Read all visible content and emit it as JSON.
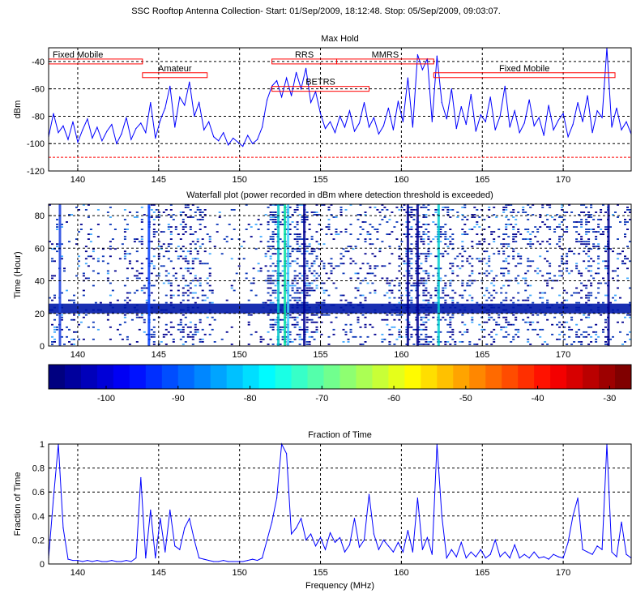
{
  "suptitle": "SSC Rooftop Antenna Collection- Start: 01/Sep/2009, 18:12:48. Stop:  05/Sep/2009, 09:03:07.",
  "chart_data": [
    {
      "type": "line",
      "title": "Max Hold",
      "xlabel": "",
      "ylabel": "dBm",
      "xlim": [
        138.2,
        174.2
      ],
      "ylim": [
        -120,
        -30
      ],
      "xticks": [
        140,
        145,
        150,
        155,
        160,
        165,
        170
      ],
      "yticks": [
        -120,
        -100,
        -80,
        -60,
        -40
      ],
      "grid": "dashed",
      "threshold_line": -110,
      "bands": [
        {
          "label": "Fixed Mobile",
          "x0": 138.2,
          "x1": 144.0,
          "y": -40
        },
        {
          "label": "Amateur",
          "x0": 144.0,
          "x1": 148.0,
          "y": -50
        },
        {
          "label": "RRS",
          "x0": 152.0,
          "x1": 156.0,
          "y": -40
        },
        {
          "label": "MMRS",
          "x0": 156.0,
          "x1": 162.0,
          "y": -40
        },
        {
          "label": "BETRS",
          "x0": 152.0,
          "x1": 158.0,
          "y": -60
        },
        {
          "label": "Fixed Mobile",
          "x0": 162.0,
          "x1": 173.2,
          "y": -50
        }
      ],
      "x": [
        138.2,
        138.5,
        138.8,
        139.1,
        139.4,
        139.7,
        140.0,
        140.3,
        140.6,
        140.9,
        141.2,
        141.5,
        141.8,
        142.1,
        142.4,
        142.7,
        143.0,
        143.3,
        143.6,
        143.9,
        144.2,
        144.5,
        144.8,
        145.1,
        145.4,
        145.7,
        146.0,
        146.3,
        146.6,
        146.9,
        147.2,
        147.5,
        147.8,
        148.1,
        148.4,
        148.7,
        149.0,
        149.3,
        149.6,
        149.9,
        150.2,
        150.5,
        150.8,
        151.1,
        151.4,
        151.7,
        152.0,
        152.3,
        152.6,
        152.9,
        153.2,
        153.5,
        153.8,
        154.1,
        154.4,
        154.7,
        155.0,
        155.3,
        155.6,
        155.9,
        156.2,
        156.5,
        156.8,
        157.1,
        157.4,
        157.7,
        158.0,
        158.3,
        158.6,
        158.9,
        159.2,
        159.5,
        159.8,
        160.1,
        160.4,
        160.7,
        161.0,
        161.3,
        161.6,
        161.9,
        162.2,
        162.5,
        162.8,
        163.1,
        163.4,
        163.7,
        164.0,
        164.3,
        164.6,
        164.9,
        165.2,
        165.5,
        165.8,
        166.1,
        166.4,
        166.7,
        167.0,
        167.3,
        167.6,
        167.9,
        168.2,
        168.5,
        168.8,
        169.1,
        169.4,
        169.7,
        170.0,
        170.3,
        170.6,
        170.9,
        171.2,
        171.5,
        171.8,
        172.1,
        172.4,
        172.7,
        173.0,
        173.3,
        173.6,
        173.9,
        174.2
      ],
      "series": [
        {
          "values": [
            -95,
            -78,
            -92,
            -87,
            -97,
            -84,
            -99,
            -90,
            -82,
            -96,
            -88,
            -98,
            -91,
            -86,
            -100,
            -93,
            -81,
            -97,
            -89,
            -85,
            -92,
            -70,
            -96,
            -83,
            -74,
            -58,
            -88,
            -66,
            -72,
            -55,
            -80,
            -70,
            -90,
            -84,
            -95,
            -98,
            -92,
            -101,
            -96,
            -99,
            -102,
            -94,
            -100,
            -97,
            -88,
            -68,
            -58,
            -54,
            -66,
            -52,
            -65,
            -48,
            -60,
            -45,
            -70,
            -62,
            -78,
            -89,
            -84,
            -92,
            -80,
            -88,
            -76,
            -91,
            -85,
            -70,
            -88,
            -81,
            -93,
            -87,
            -74,
            -90,
            -69,
            -84,
            -52,
            -88,
            -35,
            -46,
            -38,
            -84,
            -36,
            -70,
            -82,
            -60,
            -89,
            -73,
            -86,
            -64,
            -91,
            -79,
            -84,
            -66,
            -90,
            -80,
            -58,
            -88,
            -76,
            -92,
            -85,
            -68,
            -87,
            -81,
            -94,
            -72,
            -90,
            -83,
            -78,
            -95,
            -86,
            -70,
            -84,
            -65,
            -92,
            -76,
            -81,
            -30,
            -88,
            -74,
            -90,
            -84,
            -93
          ]
        }
      ]
    },
    {
      "type": "heatmap",
      "title": "Waterfall plot (power recorded in dBm where detection threshold is exceeded)",
      "xlabel": "",
      "ylabel": "Time (Hour)",
      "xlim": [
        138.2,
        174.2
      ],
      "ylim": [
        0,
        87
      ],
      "xticks": [
        140,
        145,
        150,
        155,
        160,
        165,
        170
      ],
      "yticks": [
        0,
        20,
        40,
        60,
        80
      ],
      "grid": "dashed"
    },
    {
      "type": "colorbar",
      "range": [
        -108,
        -27
      ],
      "ticks": [
        -100,
        -90,
        -80,
        -70,
        -60,
        -50,
        -40,
        -30
      ]
    },
    {
      "type": "line",
      "title": "Fraction of Time",
      "xlabel": "Frequency (MHz)",
      "ylabel": "Fraction of Time",
      "xlim": [
        138.2,
        174.2
      ],
      "ylim": [
        0,
        1
      ],
      "xticks": [
        140,
        145,
        150,
        155,
        160,
        165,
        170
      ],
      "yticks": [
        0,
        0.2,
        0.4,
        0.6,
        0.8,
        1
      ],
      "grid": "dashed",
      "x": [
        138.2,
        138.5,
        138.8,
        139.1,
        139.4,
        139.7,
        140.0,
        140.3,
        140.6,
        140.9,
        141.2,
        141.5,
        141.8,
        142.1,
        142.4,
        142.7,
        143.0,
        143.3,
        143.6,
        143.9,
        144.2,
        144.5,
        144.8,
        145.1,
        145.4,
        145.7,
        146.0,
        146.3,
        146.6,
        146.9,
        147.2,
        147.5,
        147.8,
        148.1,
        148.4,
        148.7,
        149.0,
        149.3,
        149.6,
        149.9,
        150.2,
        150.5,
        150.8,
        151.1,
        151.4,
        151.7,
        152.0,
        152.3,
        152.6,
        152.9,
        153.2,
        153.5,
        153.8,
        154.1,
        154.4,
        154.7,
        155.0,
        155.3,
        155.6,
        155.9,
        156.2,
        156.5,
        156.8,
        157.1,
        157.4,
        157.7,
        158.0,
        158.3,
        158.6,
        158.9,
        159.2,
        159.5,
        159.8,
        160.1,
        160.4,
        160.7,
        161.0,
        161.3,
        161.6,
        161.9,
        162.2,
        162.5,
        162.8,
        163.1,
        163.4,
        163.7,
        164.0,
        164.3,
        164.6,
        164.9,
        165.2,
        165.5,
        165.8,
        166.1,
        166.4,
        166.7,
        167.0,
        167.3,
        167.6,
        167.9,
        168.2,
        168.5,
        168.8,
        169.1,
        169.4,
        169.7,
        170.0,
        170.3,
        170.6,
        170.9,
        171.2,
        171.5,
        171.8,
        172.1,
        172.4,
        172.7,
        173.0,
        173.3,
        173.6,
        173.9,
        174.2
      ],
      "series": [
        {
          "values": [
            0.05,
            0.55,
            1.0,
            0.3,
            0.04,
            0.03,
            0.03,
            0.02,
            0.03,
            0.02,
            0.03,
            0.02,
            0.02,
            0.03,
            0.02,
            0.02,
            0.03,
            0.02,
            0.05,
            0.72,
            0.05,
            0.45,
            0.05,
            0.38,
            0.1,
            0.45,
            0.15,
            0.12,
            0.3,
            0.38,
            0.2,
            0.05,
            0.04,
            0.03,
            0.02,
            0.02,
            0.03,
            0.02,
            0.02,
            0.02,
            0.02,
            0.03,
            0.04,
            0.03,
            0.05,
            0.2,
            0.35,
            0.55,
            1.0,
            0.92,
            0.25,
            0.3,
            0.38,
            0.2,
            0.25,
            0.15,
            0.22,
            0.12,
            0.26,
            0.18,
            0.22,
            0.1,
            0.16,
            0.38,
            0.14,
            0.2,
            0.58,
            0.25,
            0.12,
            0.2,
            0.15,
            0.1,
            0.18,
            0.1,
            0.28,
            0.1,
            0.55,
            0.12,
            0.22,
            0.08,
            1.0,
            0.4,
            0.05,
            0.12,
            0.06,
            0.18,
            0.05,
            0.1,
            0.06,
            0.12,
            0.05,
            0.08,
            0.2,
            0.06,
            0.1,
            0.05,
            0.16,
            0.05,
            0.08,
            0.05,
            0.1,
            0.05,
            0.06,
            0.04,
            0.08,
            0.06,
            0.05,
            0.18,
            0.4,
            0.55,
            0.12,
            0.1,
            0.08,
            0.15,
            0.12,
            1.0,
            0.1,
            0.06,
            0.35,
            0.08,
            0.05
          ]
        }
      ]
    }
  ]
}
